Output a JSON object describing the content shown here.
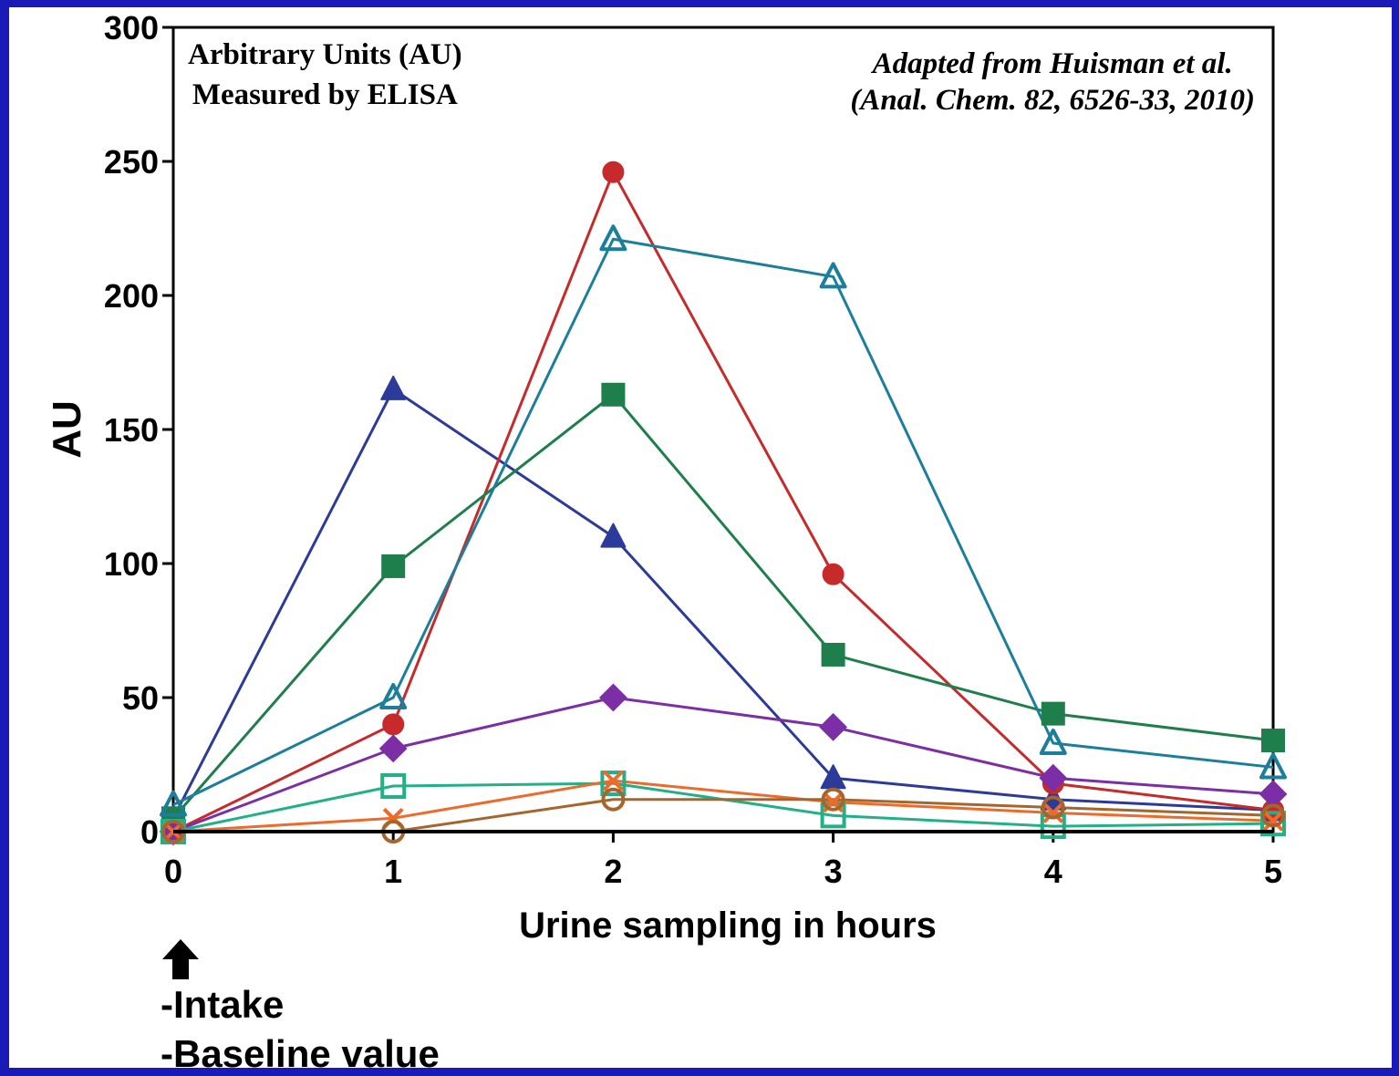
{
  "chart_data": {
    "type": "line",
    "xlabel": "Urine sampling in hours",
    "ylabel": "AU",
    "x": [
      0,
      1,
      2,
      3,
      4,
      5
    ],
    "xlim": [
      0,
      5
    ],
    "ylim": [
      0,
      300
    ],
    "yticks": [
      0,
      50,
      100,
      150,
      200,
      250,
      300
    ],
    "grid": false,
    "legend": "none",
    "series": [
      {
        "color": "#2c3a9a",
        "marker": "triangle",
        "filled": true,
        "values": [
          5,
          165,
          110,
          20,
          12,
          8
        ]
      },
      {
        "color": "#c62a2a",
        "marker": "circle",
        "filled": true,
        "values": [
          0,
          40,
          246,
          96,
          18,
          8
        ]
      },
      {
        "color": "#1e7f4c",
        "marker": "square",
        "filled": true,
        "values": [
          5,
          99,
          163,
          66,
          44,
          34
        ]
      },
      {
        "color": "#1b7f9c",
        "marker": "triangle",
        "filled": false,
        "values": [
          10,
          50,
          221,
          207,
          33,
          24
        ]
      },
      {
        "color": "#7b2ea6",
        "marker": "diamond",
        "filled": true,
        "values": [
          0,
          31,
          50,
          39,
          20,
          14
        ]
      },
      {
        "color": "#22b088",
        "marker": "square",
        "filled": false,
        "values": [
          0,
          17,
          18,
          6,
          2,
          3
        ]
      },
      {
        "color": "#ee6a2a",
        "marker": "x",
        "filled": false,
        "values": [
          0,
          5,
          19,
          11,
          7,
          4
        ]
      },
      {
        "color": "#a5662e",
        "marker": "circle",
        "filled": false,
        "values": [
          0,
          0,
          12,
          12,
          9,
          6
        ]
      }
    ]
  },
  "annotations": {
    "units_line1": "Arbitrary Units (AU)",
    "units_line2": "Measured by ELISA",
    "citation_line1": "Adapted from Huisman et al.",
    "citation_line2": "(Anal. Chem. 82, 6526-33, 2010)",
    "intake_label": "-Intake",
    "baseline_label": "-Baseline value"
  }
}
